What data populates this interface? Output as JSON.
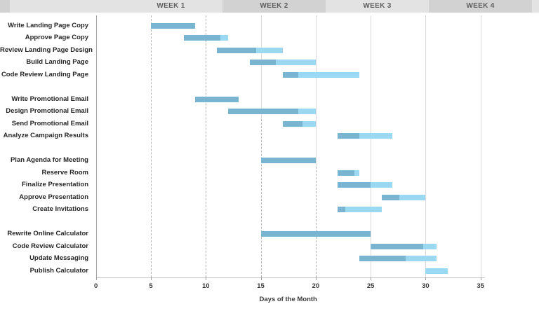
{
  "header": {
    "weeks": [
      {
        "label": "WEEK 1"
      },
      {
        "label": "WEEK 2"
      },
      {
        "label": "WEEK 3"
      },
      {
        "label": "WEEK 4"
      }
    ]
  },
  "axis": {
    "title": "Days of the Month",
    "ticks": [
      0,
      5,
      10,
      15,
      20,
      25,
      30,
      35
    ],
    "min": 0,
    "max": 35,
    "gridline_days": [
      5,
      10,
      15,
      20,
      25,
      30,
      35
    ]
  },
  "colors": {
    "bar_complete": "#79b5d1",
    "bar_remaining": "#9bd9f2",
    "header_light": "#e3e3e3",
    "header_dark": "#d2d2d2",
    "grid_solid": "#d9d9d9",
    "grid_dash": "#b3b3b3"
  },
  "chart_data": {
    "type": "bar",
    "subtype": "gantt-horizontal-stacked",
    "title": "",
    "xlabel": "Days of the Month",
    "ylabel": "",
    "xlim": [
      0,
      35
    ],
    "x_ticks": [
      0,
      5,
      10,
      15,
      20,
      25,
      30,
      35
    ],
    "week_bands": [
      "WEEK 1",
      "WEEK 2",
      "WEEK 3",
      "WEEK 4"
    ],
    "series_legend": [
      "complete (dark blue)",
      "remaining (light blue)"
    ],
    "groups": [
      {
        "name": "landing-page",
        "tasks": [
          {
            "label": "Write Landing Page Copy",
            "start": 5,
            "complete_until": 9,
            "end": 9
          },
          {
            "label": "Approve Page Copy",
            "start": 8,
            "complete_until": 11.3,
            "end": 12
          },
          {
            "label": "Review Landing Page Design",
            "start": 11,
            "complete_until": 14.6,
            "end": 17
          },
          {
            "label": "Build Landing Page",
            "start": 14,
            "complete_until": 16.4,
            "end": 20
          },
          {
            "label": "Code Review Landing Page",
            "start": 17,
            "complete_until": 18.4,
            "end": 24
          }
        ]
      },
      {
        "name": "promotional-email",
        "tasks": [
          {
            "label": "Write Promotional Email",
            "start": 9,
            "complete_until": 13,
            "end": 13
          },
          {
            "label": "Design Promotional Email",
            "start": 12,
            "complete_until": 18.4,
            "end": 20
          },
          {
            "label": "Send Promotional Email",
            "start": 17,
            "complete_until": 18.8,
            "end": 20
          },
          {
            "label": "Analyze Campaign Results",
            "start": 22,
            "complete_until": 24,
            "end": 27
          }
        ]
      },
      {
        "name": "meeting",
        "tasks": [
          {
            "label": "Plan Agenda for Meeting",
            "start": 15,
            "complete_until": 20,
            "end": 20
          },
          {
            "label": "Reserve Room",
            "start": 22,
            "complete_until": 23.5,
            "end": 24
          },
          {
            "label": "Finalize Presentation",
            "start": 22,
            "complete_until": 25,
            "end": 27
          },
          {
            "label": "Approve Presentation",
            "start": 26,
            "complete_until": 27.6,
            "end": 30
          },
          {
            "label": "Create Invitations",
            "start": 22,
            "complete_until": 22.7,
            "end": 26
          }
        ]
      },
      {
        "name": "calculator",
        "tasks": [
          {
            "label": "Rewrite Online Calculator",
            "start": 15,
            "complete_until": 25,
            "end": 25
          },
          {
            "label": "Code Review Calculator",
            "start": 25,
            "complete_until": 29.8,
            "end": 31
          },
          {
            "label": "Update Messaging",
            "start": 24,
            "complete_until": 28.2,
            "end": 31
          },
          {
            "label": "Publish Calculator",
            "start": 30,
            "complete_until": 30,
            "end": 32
          }
        ]
      }
    ]
  }
}
